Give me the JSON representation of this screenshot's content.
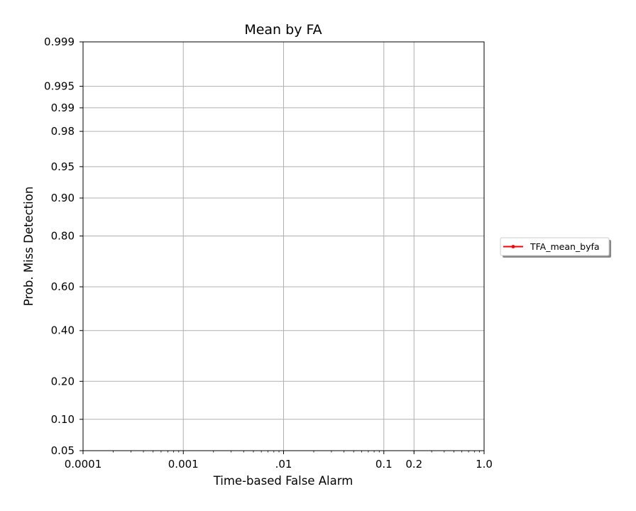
{
  "chart_data": {
    "type": "line",
    "title": "Mean by FA",
    "xlabel": "Time-based False Alarm",
    "ylabel": "Prob. Miss Detection",
    "x_scale": "log",
    "y_scale": "normal-deviate",
    "xlim": [
      0.0001,
      1.0
    ],
    "ylim": [
      0.05,
      0.999
    ],
    "x_ticks": [
      {
        "value": 0.0001,
        "label": "0.0001"
      },
      {
        "value": 0.001,
        "label": "0.001"
      },
      {
        "value": 0.01,
        "label": ".01"
      },
      {
        "value": 0.1,
        "label": "0.1"
      },
      {
        "value": 0.2,
        "label": "0.2"
      },
      {
        "value": 1.0,
        "label": "1.0"
      }
    ],
    "y_ticks": [
      {
        "value": 0.05,
        "label": "0.05"
      },
      {
        "value": 0.1,
        "label": "0.10"
      },
      {
        "value": 0.2,
        "label": "0.20"
      },
      {
        "value": 0.4,
        "label": "0.40"
      },
      {
        "value": 0.6,
        "label": "0.60"
      },
      {
        "value": 0.8,
        "label": "0.80"
      },
      {
        "value": 0.9,
        "label": "0.90"
      },
      {
        "value": 0.95,
        "label": "0.95"
      },
      {
        "value": 0.98,
        "label": "0.98"
      },
      {
        "value": 0.99,
        "label": "0.99"
      },
      {
        "value": 0.995,
        "label": "0.995"
      },
      {
        "value": 0.999,
        "label": "0.999"
      }
    ],
    "grid": true,
    "legend_position": "right",
    "series": [
      {
        "name": "TFA_mean_byfa",
        "color": "#ff0000",
        "marker": "dot",
        "x": [],
        "y": []
      }
    ]
  }
}
